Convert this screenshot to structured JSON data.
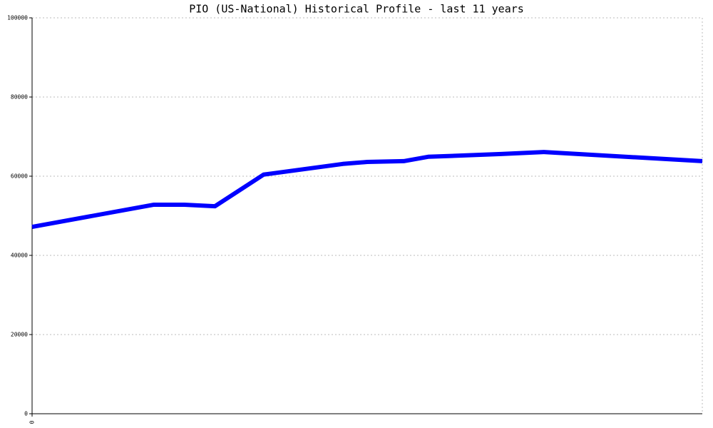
{
  "chart_data": {
    "type": "line",
    "title": "PIO (US-National) Historical Profile - last 11 years",
    "x": [
      0,
      2,
      2.5,
      3,
      3.8,
      5.1,
      5.5,
      6.1,
      6.5,
      7.7,
      8.4,
      11
    ],
    "series": [
      {
        "color": "#0000ff",
        "values": [
          47200,
          52800,
          52800,
          52400,
          60400,
          63100,
          63600,
          63800,
          64900,
          65600,
          66100,
          63800
        ]
      }
    ],
    "xlim": [
      0,
      11
    ],
    "xticks": [
      0
    ],
    "ylim": [
      0,
      100000
    ],
    "yticks": [
      0,
      20000,
      40000,
      60000,
      80000,
      100000
    ],
    "grid": true
  }
}
